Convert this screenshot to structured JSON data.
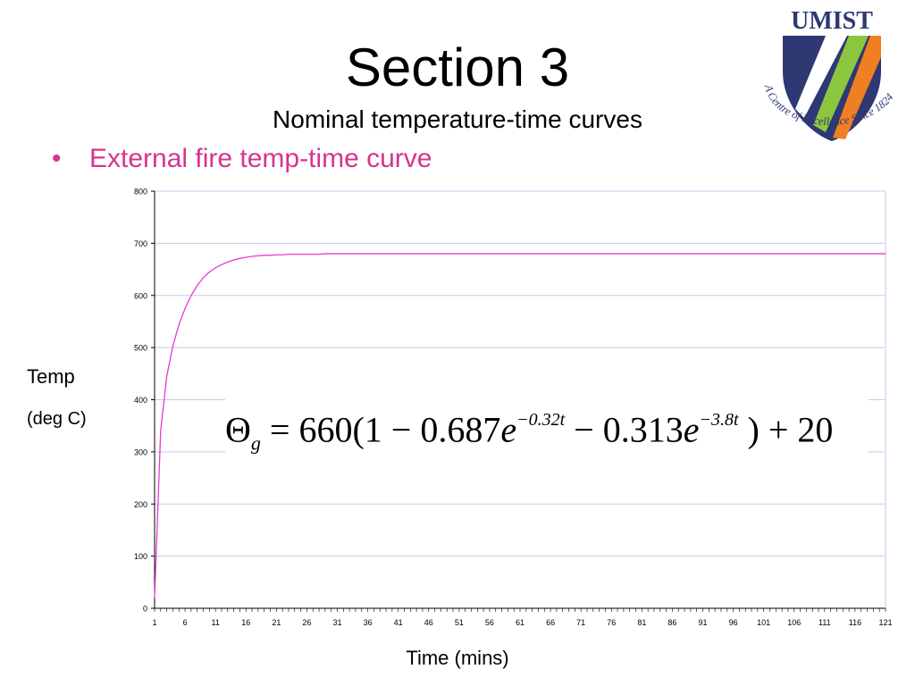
{
  "slide": {
    "title": "Section 3",
    "subtitle": "Nominal temperature-time curves",
    "bullet": "External fire temp-time curve"
  },
  "logo": {
    "name": "UMIST",
    "motto": "A Centre of Excellence Since 1824",
    "colors": {
      "navy": "#2e3873",
      "green": "#8cc63f",
      "orange": "#f07f21",
      "text": "#2e3873"
    }
  },
  "colors": {
    "bullet_text": "#d6348f",
    "series_line": "#e639d6",
    "gridline": "#c8c8ee",
    "axis": "#000000"
  },
  "axis_labels": {
    "y": "Temp",
    "y_unit": "(deg C)",
    "x": "Time (mins)"
  },
  "formula": {
    "lhs": "Θ",
    "lhs_sub": "g",
    "eq": " = 660(1 − 0.687",
    "e1": "e",
    "exp1": "−0.32t",
    "mid": " − 0.313",
    "e2": "e",
    "exp2": "−3.8t",
    "end": " ) + 20"
  },
  "chart_data": {
    "type": "line",
    "xlabel": "Time (mins)",
    "ylabel": "Temp (deg C)",
    "x_range": [
      1,
      121
    ],
    "x_ticks": [
      "1",
      "6",
      "11",
      "16",
      "21",
      "26",
      "31",
      "36",
      "41",
      "46",
      "51",
      "56",
      "61",
      "66",
      "71",
      "76",
      "81",
      "86",
      "91",
      "96",
      "101",
      "106",
      "111",
      "116",
      "121"
    ],
    "ylim": [
      0,
      800
    ],
    "y_ticks": [
      0,
      100,
      200,
      300,
      400,
      500,
      600,
      700,
      800
    ],
    "grid": true,
    "series": [
      {
        "values": [
          20,
          341,
          445,
          503,
          544,
          575,
          600,
          619,
          634,
          645,
          653,
          659,
          664,
          668,
          671,
          673,
          675,
          676,
          677,
          677,
          678,
          678,
          679,
          679,
          679,
          679,
          679,
          679,
          680,
          680,
          680,
          680,
          680,
          680,
          680,
          680,
          680,
          680,
          680,
          680,
          680,
          680,
          680,
          680,
          680,
          680,
          680,
          680,
          680,
          680,
          680,
          680,
          680,
          680,
          680,
          680,
          680,
          680,
          680,
          680,
          680,
          680,
          680,
          680,
          680,
          680,
          680,
          680,
          680,
          680,
          680,
          680,
          680,
          680,
          680,
          680,
          680,
          680,
          680,
          680,
          680,
          680,
          680,
          680,
          680,
          680,
          680,
          680,
          680,
          680,
          680,
          680,
          680,
          680,
          680,
          680,
          680,
          680,
          680,
          680,
          680,
          680,
          680,
          680,
          680,
          680,
          680,
          680,
          680,
          680,
          680,
          680,
          680,
          680,
          680,
          680,
          680,
          680,
          680,
          680,
          680
        ]
      }
    ]
  }
}
